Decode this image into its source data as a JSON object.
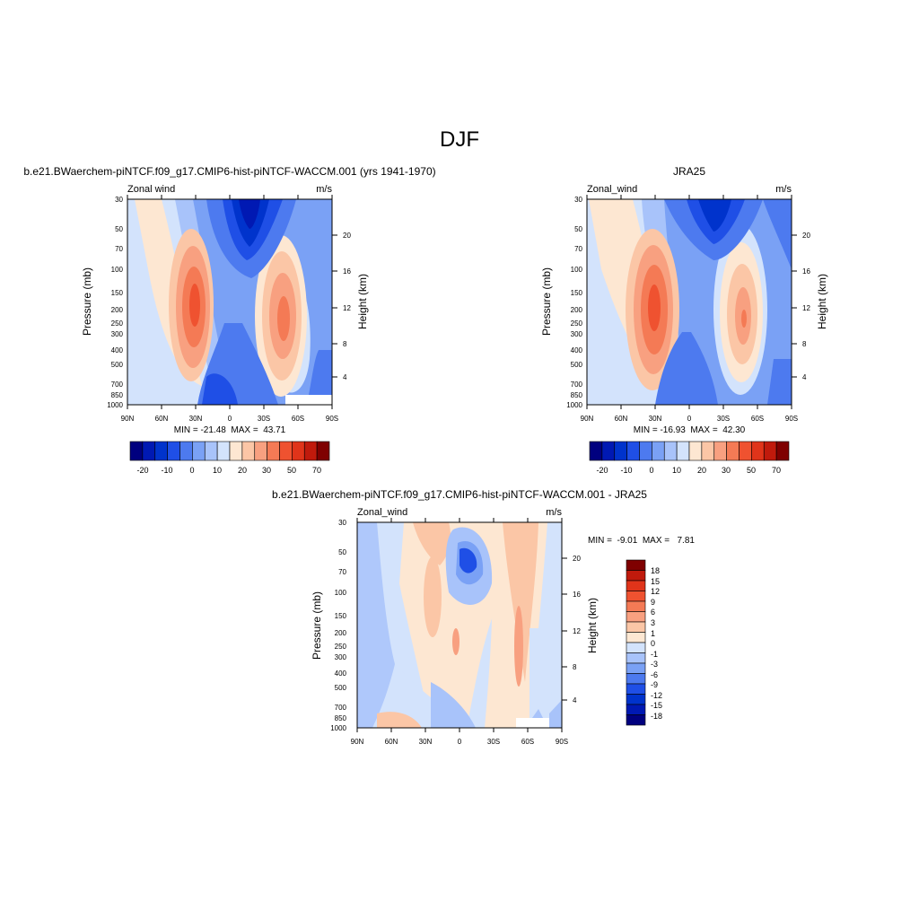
{
  "page": {
    "title": "DJF"
  },
  "colors": {
    "abs_scale": [
      "#00007f",
      "#0019b3",
      "#0033cc",
      "#1f4fe6",
      "#4d7aef",
      "#7aa1f5",
      "#a8c3fa",
      "#d3e3fc",
      "#fde7d2",
      "#fbc6a6",
      "#f8a080",
      "#f47a55",
      "#ef5230",
      "#e0341a",
      "#c01a0c",
      "#7f0000"
    ],
    "diff_scale": [
      "#00007f",
      "#0019b3",
      "#0033cc",
      "#1f4fe6",
      "#4d7aef",
      "#7aa1f5",
      "#a8c3fa",
      "#d3e3fc",
      "#fde7d2",
      "#fbc6a6",
      "#f8a080",
      "#f47a55",
      "#ef5230",
      "#e0341a",
      "#c01a0c",
      "#7f0000"
    ]
  },
  "chart_data": [
    {
      "type": "heatmap",
      "title": "b.e21.BWaerchem-piNTCF.f09_g17.CMIP6-hist-piNTCF-WACCM.001 (yrs 1941-1970)",
      "left_label": "Zonal wind",
      "right_label": "m/s",
      "ylabel": "Pressure (mb)",
      "ylabel_right": "Height (km)",
      "x_ticks": [
        "90N",
        "60N",
        "30N",
        "0",
        "30S",
        "60S",
        "90S"
      ],
      "y_ticks": [
        "30",
        "50",
        "70",
        "100",
        "150",
        "200",
        "250",
        "300",
        "400",
        "500",
        "700",
        "850",
        "1000"
      ],
      "height_ticks": [
        "20",
        "16",
        "12",
        "8",
        "4"
      ],
      "stats": "MIN = -21.48  MAX =  43.71",
      "colorbar_labels": [
        "-20",
        "-10",
        "0",
        "10",
        "20",
        "30",
        "50",
        "70"
      ],
      "features": [
        {
          "lat": 30,
          "p": 200,
          "value": 43.71
        },
        {
          "lat": -45,
          "p": 200,
          "value": 35
        },
        {
          "lat": 15,
          "p": 30,
          "value": -21.48
        }
      ]
    },
    {
      "type": "heatmap",
      "title": "JRA25",
      "left_label": "Zonal_wind",
      "right_label": "m/s",
      "ylabel": "Pressure (mb)",
      "ylabel_right": "Height (km)",
      "x_ticks": [
        "90N",
        "60N",
        "30N",
        "0",
        "30S",
        "60S",
        "90S"
      ],
      "y_ticks": [
        "30",
        "50",
        "70",
        "100",
        "150",
        "200",
        "250",
        "300",
        "400",
        "500",
        "700",
        "850",
        "1000"
      ],
      "height_ticks": [
        "20",
        "16",
        "12",
        "8",
        "4"
      ],
      "stats": "MIN = -16.93  MAX =  42.30",
      "colorbar_labels": [
        "-20",
        "-10",
        "0",
        "10",
        "20",
        "30",
        "50",
        "70"
      ],
      "features": [
        {
          "lat": 30,
          "p": 200,
          "value": 42.3
        },
        {
          "lat": -45,
          "p": 200,
          "value": 30
        },
        {
          "lat": 15,
          "p": 30,
          "value": -16.93
        }
      ]
    },
    {
      "type": "heatmap",
      "title": "b.e21.BWaerchem-piNTCF.f09_g17.CMIP6-hist-piNTCF-WACCM.001 - JRA25",
      "left_label": "Zonal_wind",
      "right_label": "m/s",
      "ylabel": "Pressure (mb)",
      "ylabel_right": "Height (km)",
      "x_ticks": [
        "90N",
        "60N",
        "30N",
        "0",
        "30S",
        "60S",
        "90S"
      ],
      "y_ticks": [
        "30",
        "50",
        "70",
        "100",
        "150",
        "200",
        "250",
        "300",
        "400",
        "500",
        "700",
        "850",
        "1000"
      ],
      "height_ticks": [
        "20",
        "16",
        "12",
        "8",
        "4"
      ],
      "stats": "MIN =  -9.01  MAX =   7.81",
      "colorbar_labels": [
        "18",
        "15",
        "12",
        "9",
        "6",
        "3",
        "1",
        "0",
        "-1",
        "-3",
        "-6",
        "-9",
        "-12",
        "-15",
        "-18"
      ],
      "features": [
        {
          "lat": 0,
          "p": 60,
          "value": -9.01
        },
        {
          "lat": -45,
          "p": 150,
          "value": 7.81
        }
      ]
    }
  ]
}
